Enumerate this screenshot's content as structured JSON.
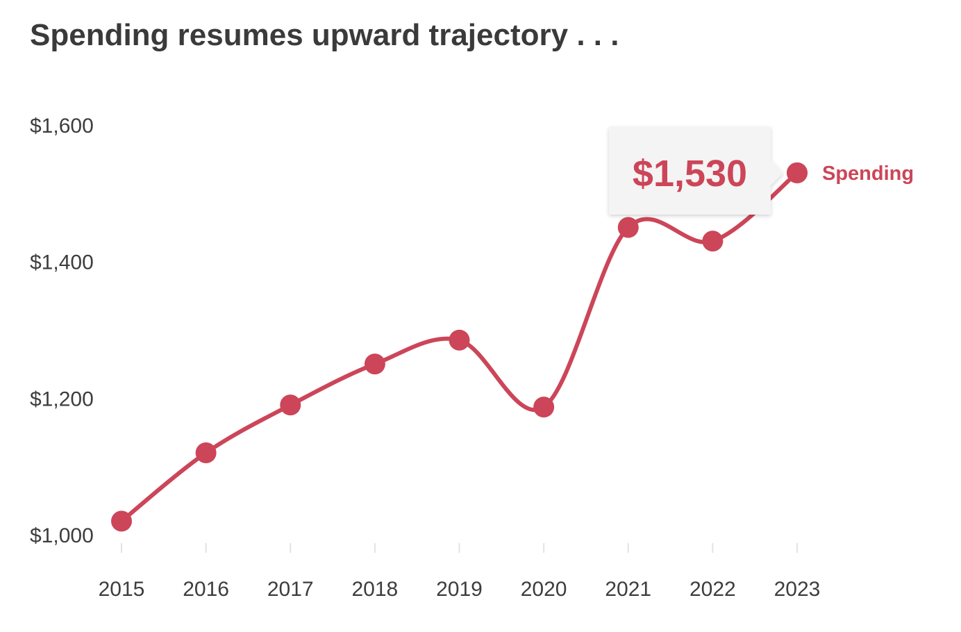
{
  "title": "Spending resumes upward trajectory . . .",
  "colors": {
    "series": "#cc4558",
    "tooltip_bg": "#f4f4f4",
    "tick_text": "#3d3d3d",
    "axis_tick": "#e3e3e3"
  },
  "chart_data": {
    "type": "line",
    "title": "Spending resumes upward trajectory . . .",
    "xlabel": "",
    "ylabel": "",
    "x": [
      "2015",
      "2016",
      "2017",
      "2018",
      "2019",
      "2020",
      "2021",
      "2022",
      "2023"
    ],
    "series": [
      {
        "name": "Spending",
        "values": [
          1020,
          1120,
          1190,
          1250,
          1285,
          1187,
          1450,
          1430,
          1530
        ]
      }
    ],
    "ylim": [
      1000,
      1600
    ],
    "y_ticks": [
      1000,
      1200,
      1400,
      1600
    ],
    "y_tick_labels": [
      "$1,000",
      "$1,200",
      "$1,400",
      "$1,600"
    ],
    "grid": false,
    "legend": "end-of-line label",
    "tooltip": {
      "category": "2023",
      "text": "$1,530"
    }
  }
}
